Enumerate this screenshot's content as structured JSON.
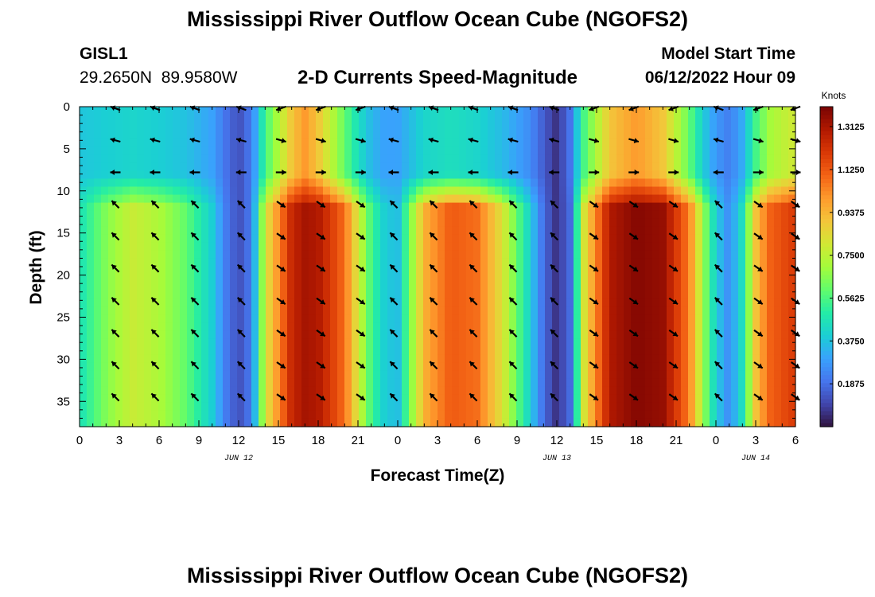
{
  "header": {
    "title": "Mississippi River Outflow Ocean Cube (NGOFS2)",
    "station_name": "GISL1",
    "station_coords": "29.2650N  89.9580W",
    "plot_title": "2-D Currents Speed-Magnitude",
    "model_start_label": "Model Start Time",
    "model_start_value": "06/12/2022 Hour 09"
  },
  "footer": {
    "title": "Mississippi River Outflow Ocean Cube (NGOFS2)"
  },
  "chart_data": {
    "type": "heatmap",
    "xlabel": "Forecast Time(Z)",
    "ylabel": "Depth (ft)",
    "xlim": [
      0,
      54
    ],
    "ylim": [
      38,
      0
    ],
    "x_ticks": [
      0,
      3,
      6,
      9,
      12,
      15,
      18,
      21,
      24,
      27,
      30,
      33,
      36,
      39,
      42,
      45,
      48,
      51,
      54
    ],
    "x_tick_labels": [
      "0",
      "3",
      "6",
      "9",
      "12",
      "15",
      "18",
      "21",
      "0",
      "3",
      "6",
      "9",
      "12",
      "15",
      "18",
      "21",
      "0",
      "3",
      "6"
    ],
    "y_ticks": [
      0,
      5,
      10,
      15,
      20,
      25,
      30,
      35
    ],
    "y_tick_labels": [
      "0",
      "5",
      "10",
      "15",
      "20",
      "25",
      "30",
      "35"
    ],
    "date_labels": [
      {
        "x": 12,
        "text": "JUN 12"
      },
      {
        "x": 36,
        "text": "JUN 13"
      },
      {
        "x": 51,
        "text": "JUN 14"
      }
    ],
    "colorbar": {
      "label": "Knots",
      "min": 0.0,
      "max": 1.4,
      "ticks": [
        0.1875,
        0.375,
        0.5625,
        0.75,
        0.9375,
        1.125,
        1.3125
      ],
      "tick_labels": [
        "0.1875",
        "0.3750",
        "0.5625",
        "0.7500",
        "0.9375",
        "1.1250",
        "1.3125"
      ]
    },
    "vector_times": [
      2.7,
      5.7,
      8.7,
      12.2,
      15.2,
      18.2,
      21.2,
      23.7,
      26.7,
      29.7,
      32.7,
      35.8,
      38.8,
      41.8,
      44.8,
      48.2,
      51.2,
      54.0
    ],
    "vector_depths": [
      0.2,
      4.0,
      7.8,
      11.6,
      15.4,
      19.2,
      23.1,
      26.9,
      30.7,
      34.5
    ],
    "speed_profile": {
      "times": [
        0,
        2,
        4,
        6,
        8,
        10,
        11,
        12,
        13,
        14,
        16,
        17,
        18,
        20,
        21,
        22,
        23,
        24,
        26,
        28,
        30,
        32,
        34,
        35,
        36,
        37,
        38,
        40,
        42,
        44,
        46,
        47,
        48,
        49,
        50,
        51,
        52,
        54
      ],
      "deep_speed": [
        0.46,
        0.65,
        0.78,
        0.72,
        0.6,
        0.4,
        0.22,
        0.12,
        0.22,
        0.8,
        1.25,
        1.32,
        1.3,
        1.08,
        0.8,
        0.55,
        0.4,
        0.36,
        0.95,
        1.12,
        1.08,
        0.8,
        0.4,
        0.18,
        0.06,
        0.18,
        0.8,
        1.3,
        1.38,
        1.35,
        1.05,
        0.7,
        0.4,
        0.25,
        0.45,
        0.9,
        1.1,
        1.2
      ],
      "surface_speed": [
        0.38,
        0.4,
        0.42,
        0.4,
        0.37,
        0.3,
        0.2,
        0.12,
        0.22,
        0.55,
        0.9,
        1.0,
        0.9,
        0.6,
        0.45,
        0.35,
        0.3,
        0.3,
        0.42,
        0.45,
        0.42,
        0.35,
        0.25,
        0.15,
        0.06,
        0.2,
        0.55,
        0.9,
        1.0,
        0.9,
        0.6,
        0.4,
        0.28,
        0.22,
        0.32,
        0.55,
        0.7,
        0.8
      ]
    },
    "ebb_intervals": [
      [
        0,
        12.5
      ],
      [
        21.5,
        36
      ],
      [
        47,
        50
      ]
    ],
    "colors": {
      "colormap": [
        "#30123b",
        "#4145ab",
        "#4675ed",
        "#39a2fc",
        "#1bcfd4",
        "#24eca6",
        "#61fc6c",
        "#a4fc3b",
        "#d1e834",
        "#f3c63a",
        "#fe9b2d",
        "#f36315",
        "#d93806",
        "#b11901",
        "#7a0403"
      ],
      "arrow": "#000000"
    }
  }
}
